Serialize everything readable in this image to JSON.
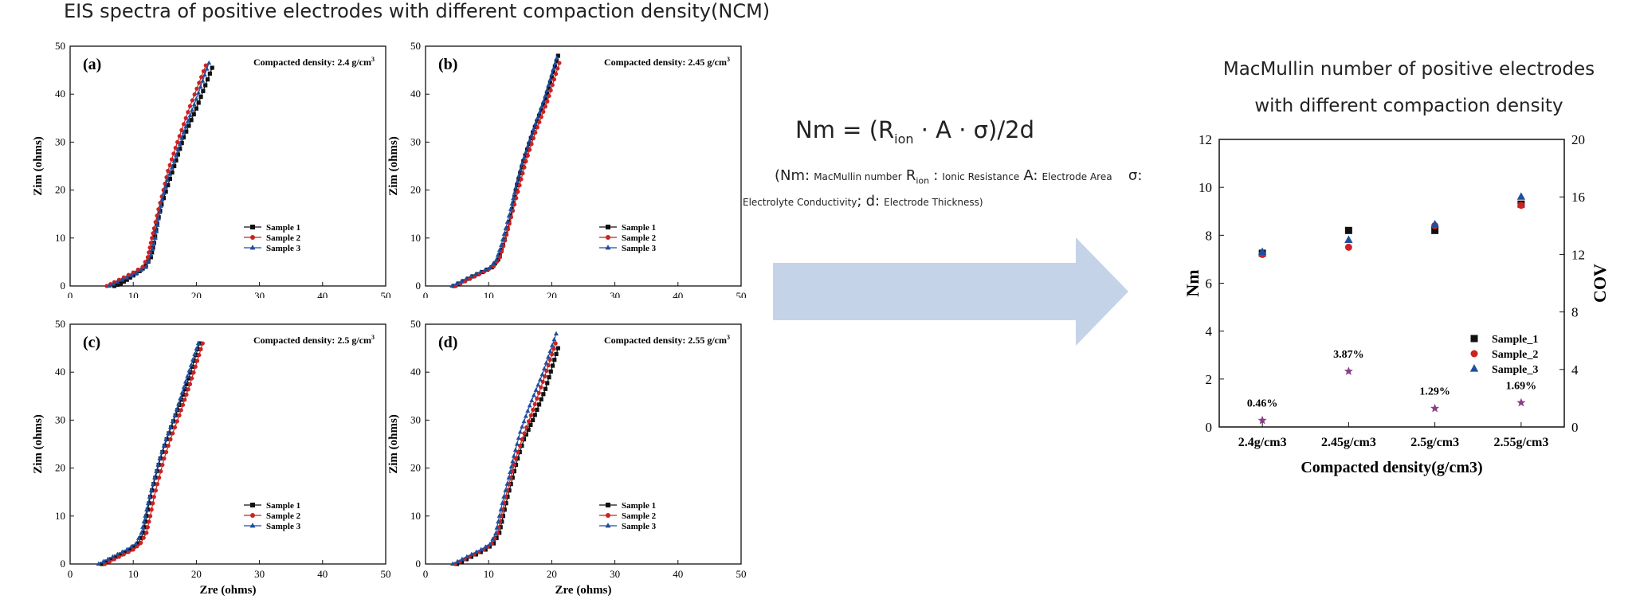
{
  "figure": {
    "title": "EIS spectra of positive electrodes with different compaction density(NCM)"
  },
  "equation": {
    "lhs": "Nm",
    "rhs_open": " = (R",
    "rhs_sub": "ion",
    "rhs_rest": " · A · σ)/2d"
  },
  "equation_legend": {
    "nm_symbol": "(Nm:",
    "nm_desc": "MacMullin number",
    "r_symbol": "R",
    "r_sub": "ion",
    "r_colon": ":",
    "r_desc": "Ionic Resistance",
    "a_symbol": "A:",
    "a_desc": "Electrode Area",
    "sigma_symbol": "σ:",
    "sigma_desc": "Electrolyte Conductivity",
    "d_sep": ";",
    "d_symbol": "d:",
    "d_desc": "Electrode Thickness)"
  },
  "right_chart_title": {
    "line1": "MacMullin number of positive electrodes",
    "line2": "with different compaction density"
  },
  "colors": {
    "sample1": "#111111",
    "sample2": "#cc2222",
    "sample3": "#1f4e9e",
    "cov": "#8a3f8a",
    "arrow": "#c5d3e8"
  },
  "chart_data": [
    {
      "type": "line",
      "panel": "(a)",
      "annotation": "Compacted density:  2.4 g/cm",
      "annotation_sup": "3",
      "xlabel": "Zre (ohms)",
      "ylabel": "Zim (ohms)",
      "xlim": [
        0,
        50
      ],
      "ylim": [
        0,
        50
      ],
      "xticks": [
        "0",
        "10",
        "20",
        "30",
        "40",
        "50"
      ],
      "yticks": [
        "0",
        "10",
        "20",
        "30",
        "40",
        "50"
      ],
      "legend_position": "lower-right",
      "series": [
        {
          "name": "Sample 1",
          "marker": "square",
          "points": [
            [
              7,
              0
            ],
            [
              8,
              0.5
            ],
            [
              9,
              1.3
            ],
            [
              10,
              2.2
            ],
            [
              11,
              3.1
            ],
            [
              12,
              4.2
            ],
            [
              12.8,
              6
            ],
            [
              13.3,
              9
            ],
            [
              13.8,
              13
            ],
            [
              14.5,
              17
            ],
            [
              15.5,
              21
            ],
            [
              16.5,
              25
            ],
            [
              18,
              31
            ],
            [
              20,
              37
            ],
            [
              22.5,
              45.5
            ]
          ]
        },
        {
          "name": "Sample 2",
          "marker": "circle",
          "points": [
            [
              5.8,
              0
            ],
            [
              7,
              0.8
            ],
            [
              8.5,
              1.8
            ],
            [
              10,
              2.8
            ],
            [
              11.5,
              4
            ],
            [
              12.3,
              6
            ],
            [
              12.8,
              9
            ],
            [
              13.3,
              12
            ],
            [
              14,
              16
            ],
            [
              14.8,
              20
            ],
            [
              15.5,
              24
            ],
            [
              17,
              30
            ],
            [
              19,
              37.5
            ],
            [
              21.5,
              46
            ]
          ]
        },
        {
          "name": "Sample 3",
          "marker": "triangle",
          "points": [
            [
              6.2,
              0
            ],
            [
              7.5,
              0.8
            ],
            [
              9,
              1.7
            ],
            [
              10.5,
              2.7
            ],
            [
              12,
              3.9
            ],
            [
              12.8,
              6.5
            ],
            [
              13.5,
              10
            ],
            [
              14,
              14
            ],
            [
              14.6,
              18
            ],
            [
              15.4,
              22
            ],
            [
              16.5,
              26
            ],
            [
              18,
              32
            ],
            [
              20,
              39
            ],
            [
              22,
              46.5
            ]
          ]
        }
      ]
    },
    {
      "type": "line",
      "panel": "(b)",
      "annotation": "Compacted density:  2.45 g/cm",
      "annotation_sup": "3",
      "xlabel": "Zre (ohms)",
      "ylabel": "Zim (ohms)",
      "xlim": [
        0,
        50
      ],
      "ylim": [
        0,
        50
      ],
      "xticks": [
        "0",
        "10",
        "20",
        "30",
        "40",
        "50"
      ],
      "yticks": [
        "0",
        "10",
        "20",
        "30",
        "40",
        "50"
      ],
      "legend_position": "lower-right",
      "series": [
        {
          "name": "Sample 1",
          "marker": "square",
          "points": [
            [
              4.5,
              0
            ],
            [
              6,
              1
            ],
            [
              7.5,
              2
            ],
            [
              9,
              2.9
            ],
            [
              10.5,
              3.9
            ],
            [
              11.5,
              5.5
            ],
            [
              12.3,
              8.5
            ],
            [
              13,
              12
            ],
            [
              13.7,
              16
            ],
            [
              14.5,
              21
            ],
            [
              15.5,
              26
            ],
            [
              17,
              32
            ],
            [
              19,
              39
            ],
            [
              21,
              48
            ]
          ]
        },
        {
          "name": "Sample 2",
          "marker": "circle",
          "points": [
            [
              4.8,
              0
            ],
            [
              6.3,
              1
            ],
            [
              7.8,
              2
            ],
            [
              9.3,
              3
            ],
            [
              10.8,
              4.1
            ],
            [
              11.8,
              6
            ],
            [
              12.6,
              9.5
            ],
            [
              13.3,
              13
            ],
            [
              14.1,
              17
            ],
            [
              14.9,
              21
            ],
            [
              15.9,
              26
            ],
            [
              17.4,
              32
            ],
            [
              19.3,
              38.5
            ],
            [
              21.2,
              46.5
            ]
          ]
        },
        {
          "name": "Sample 3",
          "marker": "triangle",
          "points": [
            [
              4.2,
              0
            ],
            [
              5.7,
              1
            ],
            [
              7.2,
              2
            ],
            [
              8.7,
              2.9
            ],
            [
              10.2,
              3.8
            ],
            [
              11.2,
              5.4
            ],
            [
              12,
              8.5
            ],
            [
              12.7,
              12
            ],
            [
              13.5,
              16
            ],
            [
              14.3,
              20.5
            ],
            [
              15.3,
              25.5
            ],
            [
              16.8,
              31.5
            ],
            [
              18.7,
              38.5
            ],
            [
              20.8,
              47.5
            ]
          ]
        }
      ]
    },
    {
      "type": "line",
      "panel": "(c)",
      "annotation": "Compacted density:  2.5 g/cm",
      "annotation_sup": "3",
      "xlabel": "Zre (ohms)",
      "ylabel": "Zim (ohms)",
      "xlim": [
        0,
        50
      ],
      "ylim": [
        0,
        50
      ],
      "xticks": [
        "0",
        "10",
        "20",
        "30",
        "40",
        "50"
      ],
      "yticks": [
        "0",
        "10",
        "20",
        "30",
        "40",
        "50"
      ],
      "legend_position": "lower-right",
      "series": [
        {
          "name": "Sample 1",
          "marker": "square",
          "points": [
            [
              5,
              0
            ],
            [
              6.5,
              1
            ],
            [
              8,
              2
            ],
            [
              9.5,
              3
            ],
            [
              10.8,
              4.3
            ],
            [
              11.6,
              6.5
            ],
            [
              12.1,
              10
            ],
            [
              12.7,
              14
            ],
            [
              13.5,
              18
            ],
            [
              14.3,
              22
            ],
            [
              15.3,
              26
            ],
            [
              16.7,
              31
            ],
            [
              18.5,
              37.5
            ],
            [
              20.5,
              46
            ]
          ]
        },
        {
          "name": "Sample 2",
          "marker": "circle",
          "points": [
            [
              5.5,
              0
            ],
            [
              7,
              1
            ],
            [
              8.5,
              2
            ],
            [
              10,
              3
            ],
            [
              11.2,
              4.4
            ],
            [
              12.1,
              6.5
            ],
            [
              12.7,
              10
            ],
            [
              13.3,
              14
            ],
            [
              14.1,
              18
            ],
            [
              14.9,
              22
            ],
            [
              15.9,
              26
            ],
            [
              17.3,
              31
            ],
            [
              19,
              37.5
            ],
            [
              21,
              46
            ]
          ]
        },
        {
          "name": "Sample 3",
          "marker": "triangle",
          "points": [
            [
              4.5,
              0
            ],
            [
              6,
              1
            ],
            [
              7.5,
              2
            ],
            [
              9,
              3
            ],
            [
              10.4,
              4.2
            ],
            [
              11.3,
              6.5
            ],
            [
              11.9,
              10
            ],
            [
              12.6,
              14
            ],
            [
              13.4,
              18
            ],
            [
              14.2,
              22
            ],
            [
              15.2,
              26
            ],
            [
              16.6,
              31
            ],
            [
              18.3,
              38
            ],
            [
              20.3,
              46
            ]
          ]
        }
      ]
    },
    {
      "type": "line",
      "panel": "(d)",
      "annotation": "Compacted density:  2.55 g/cm",
      "annotation_sup": "3",
      "xlabel": "Zre (ohms)",
      "ylabel": "Zim (ohms)",
      "xlim": [
        0,
        50
      ],
      "ylim": [
        0,
        50
      ],
      "xticks": [
        "0",
        "10",
        "20",
        "30",
        "40",
        "50"
      ],
      "yticks": [
        "0",
        "10",
        "20",
        "30",
        "40",
        "50"
      ],
      "legend_position": "lower-right",
      "series": [
        {
          "name": "Sample 1",
          "marker": "square",
          "points": [
            [
              5,
              0
            ],
            [
              6.5,
              1
            ],
            [
              8,
              2
            ],
            [
              9.5,
              3
            ],
            [
              10.8,
              4.3
            ],
            [
              11.7,
              6.5
            ],
            [
              12.3,
              10
            ],
            [
              13,
              14
            ],
            [
              13.8,
              18
            ],
            [
              14.6,
              22
            ],
            [
              15.6,
              26
            ],
            [
              17,
              30
            ],
            [
              19,
              36.5
            ],
            [
              21,
              45
            ]
          ]
        },
        {
          "name": "Sample 2",
          "marker": "circle",
          "points": [
            [
              4.7,
              0
            ],
            [
              6.2,
              1
            ],
            [
              7.7,
              2
            ],
            [
              9.2,
              3
            ],
            [
              10.5,
              4.2
            ],
            [
              11.4,
              6.4
            ],
            [
              12,
              10
            ],
            [
              12.7,
              14
            ],
            [
              13.5,
              18
            ],
            [
              14.3,
              22
            ],
            [
              15.3,
              26
            ],
            [
              16.7,
              31
            ],
            [
              18.6,
              38
            ],
            [
              20.6,
              46
            ]
          ]
        },
        {
          "name": "Sample 3",
          "marker": "triangle",
          "points": [
            [
              4.3,
              0
            ],
            [
              5.8,
              1
            ],
            [
              7.3,
              2
            ],
            [
              8.8,
              3
            ],
            [
              10.2,
              4.1
            ],
            [
              11.1,
              6.3
            ],
            [
              11.7,
              10
            ],
            [
              12.4,
              14
            ],
            [
              13.2,
              18
            ],
            [
              14,
              22.5
            ],
            [
              15,
              27.5
            ],
            [
              16.5,
              33
            ],
            [
              18.5,
              39.5
            ],
            [
              20.7,
              48
            ]
          ]
        }
      ]
    },
    {
      "type": "scatter",
      "title": "MacMullin number of positive electrodes with different compaction density",
      "xlabel": "Compacted density(g/cm3)",
      "ylabel": "Nm",
      "y2label": "COV",
      "categories": [
        "2.4g/cm3",
        "2.45g/cm3",
        "2.5g/cm3",
        "2.55g/cm3"
      ],
      "ylim": [
        0,
        12
      ],
      "y2lim": [
        0,
        20
      ],
      "yticks": [
        "0",
        "2",
        "4",
        "6",
        "8",
        "10",
        "12"
      ],
      "y2ticks": [
        "0",
        "4",
        "8",
        "12",
        "16",
        "20"
      ],
      "legend_position": "lower-right",
      "series": [
        {
          "name": "Sample_1",
          "marker": "square",
          "values": [
            7.25,
            8.2,
            8.2,
            9.3
          ]
        },
        {
          "name": "Sample_2",
          "marker": "circle",
          "values": [
            7.2,
            7.5,
            8.4,
            9.25
          ]
        },
        {
          "name": "Sample_3",
          "marker": "triangle",
          "values": [
            7.3,
            7.8,
            8.45,
            9.6
          ]
        }
      ],
      "cov": {
        "axis": "y2",
        "marker": "star",
        "values": [
          0.46,
          3.87,
          1.29,
          1.69
        ],
        "labels": [
          "0.46%",
          "3.87%",
          "1.29%",
          "1.69%"
        ]
      }
    }
  ]
}
